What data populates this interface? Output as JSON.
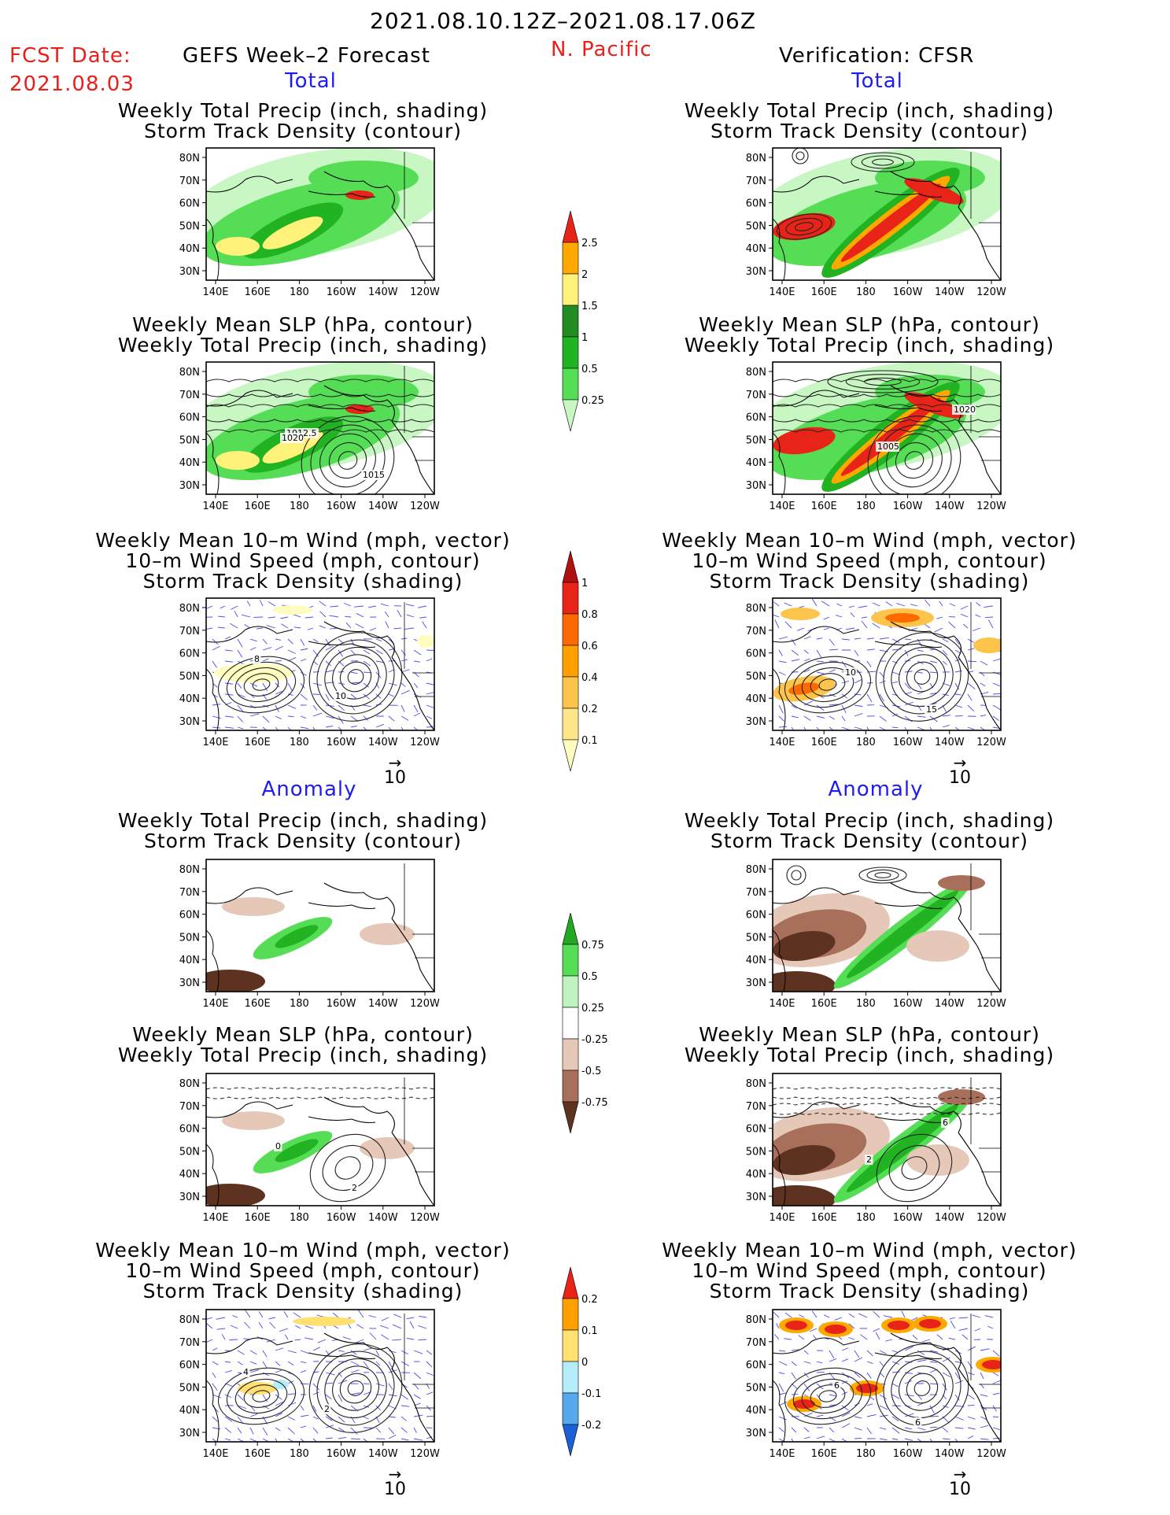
{
  "header": {
    "date_range": "2021.08.10.12Z–2021.08.17.06Z",
    "fcst_label": "FCST Date:",
    "fcst_date": "2021.08.03",
    "left_title": "GEFS Week–2 Forecast",
    "region": "N. Pacific",
    "right_title": "Verification: CFSR"
  },
  "sections": {
    "total": "Total",
    "anomaly": "Anomaly"
  },
  "panel_titles": {
    "precip_track": [
      "Weekly Total Precip (inch, shading)",
      "Storm Track Density (contour)"
    ],
    "slp_precip": [
      "Weekly Mean SLP (hPa, contour)",
      "Weekly Total Precip (inch, shading)"
    ],
    "wind": [
      "Weekly Mean 10–m Wind (mph, vector)",
      "10–m Wind Speed (mph, contour)",
      "Storm Track Density (shading)"
    ]
  },
  "map_axes": {
    "lat_labels": [
      "80N",
      "70N",
      "60N",
      "50N",
      "40N",
      "30N"
    ],
    "lon_labels": [
      "140E",
      "160E",
      "180",
      "160W",
      "140W",
      "120W"
    ]
  },
  "vector_reference": "10",
  "colorbars": [
    {
      "name": "total-precip",
      "labels": [
        "0.25",
        "0.5",
        "1",
        "1.5",
        "2",
        "2.5"
      ],
      "colors": [
        "#c8f7c4",
        "#55dd55",
        "#22b322",
        "#228b22",
        "#fff27a",
        "#ffa800",
        "#e82418"
      ]
    },
    {
      "name": "total-track",
      "labels": [
        "0.1",
        "0.2",
        "0.4",
        "0.6",
        "0.8",
        "1"
      ],
      "colors": [
        "#fffcc0",
        "#ffe68a",
        "#fcc44a",
        "#ffa000",
        "#ff6a00",
        "#e82418",
        "#b01010"
      ]
    },
    {
      "name": "anom-precip",
      "labels": [
        "0.75",
        "0.5",
        "0.25",
        "-0.25",
        "-0.5",
        "-0.75"
      ],
      "colors": [
        "#22a822",
        "#55dd55",
        "#c0f2c0",
        "#ffffff",
        "#e6c8b8",
        "#a8705a",
        "#5e3220"
      ]
    },
    {
      "name": "anom-track",
      "labels": [
        "0.2",
        "0.1",
        "0",
        "-0.1",
        "-0.2"
      ],
      "colors": [
        "#e82418",
        "#ffa000",
        "#ffe070",
        "#b4ecfa",
        "#58a8ee",
        "#1a60d8"
      ]
    }
  ],
  "panels": [
    {
      "id": "fc-total-precip-track",
      "labels": []
    },
    {
      "id": "obs-total-precip-track",
      "labels": []
    },
    {
      "id": "fc-total-slp-precip",
      "labels": [
        "1012.5",
        "1015",
        "1020"
      ]
    },
    {
      "id": "obs-total-slp-precip",
      "labels": [
        "1005",
        "1020"
      ]
    },
    {
      "id": "fc-total-wind",
      "labels": [
        "10",
        "8"
      ]
    },
    {
      "id": "obs-total-wind",
      "labels": [
        "15",
        "10"
      ]
    },
    {
      "id": "fc-anom-precip-track",
      "labels": []
    },
    {
      "id": "obs-anom-precip-track",
      "labels": []
    },
    {
      "id": "fc-anom-slp-precip",
      "labels": [
        "0",
        "2"
      ]
    },
    {
      "id": "obs-anom-slp-precip",
      "labels": [
        "2",
        "6"
      ]
    },
    {
      "id": "fc-anom-wind",
      "labels": [
        "2",
        "4"
      ]
    },
    {
      "id": "obs-anom-wind",
      "labels": [
        "6",
        "6"
      ]
    }
  ],
  "chart_data": {
    "type": "heatmap",
    "description_fields": {
      "region": "N. Pacific",
      "lat_range": [
        "25N",
        "85N"
      ],
      "lon_range": [
        "140E",
        "110W"
      ]
    },
    "panels": [
      {
        "column": "GEFS Week–2 Forecast",
        "section": "Total",
        "fields": [
          "Weekly Total Precip (inch, shading)",
          "Storm Track Density (contour)"
        ]
      },
      {
        "column": "Verification: CFSR",
        "section": "Total",
        "fields": [
          "Weekly Total Precip (inch, shading)",
          "Storm Track Density (contour)"
        ]
      },
      {
        "column": "GEFS Week–2 Forecast",
        "section": "Total",
        "fields": [
          "Weekly Mean SLP (hPa, contour)",
          "Weekly Total Precip (inch, shading)"
        ],
        "contour_labels": [
          "1012.5",
          "1015",
          "1020"
        ]
      },
      {
        "column": "Verification: CFSR",
        "section": "Total",
        "fields": [
          "Weekly Mean SLP (hPa, contour)",
          "Weekly Total Precip (inch, shading)"
        ],
        "contour_labels": [
          "1005",
          "1020"
        ]
      },
      {
        "column": "GEFS Week–2 Forecast",
        "section": "Total",
        "fields": [
          "Weekly Mean 10–m Wind (mph, vector)",
          "10–m Wind Speed (mph, contour)",
          "Storm Track Density (shading)"
        ]
      },
      {
        "column": "Verification: CFSR",
        "section": "Total",
        "fields": [
          "Weekly Mean 10–m Wind (mph, vector)",
          "10–m Wind Speed (mph, contour)",
          "Storm Track Density (shading)"
        ]
      },
      {
        "column": "GEFS Week–2 Forecast",
        "section": "Anomaly",
        "fields": [
          "Weekly Total Precip (inch, shading)",
          "Storm Track Density (contour)"
        ]
      },
      {
        "column": "Verification: CFSR",
        "section": "Anomaly",
        "fields": [
          "Weekly Total Precip (inch, shading)",
          "Storm Track Density (contour)"
        ]
      },
      {
        "column": "GEFS Week–2 Forecast",
        "section": "Anomaly",
        "fields": [
          "Weekly Mean SLP (hPa, contour)",
          "Weekly Total Precip (inch, shading)"
        ]
      },
      {
        "column": "Verification: CFSR",
        "section": "Anomaly",
        "fields": [
          "Weekly Mean SLP (hPa, contour)",
          "Weekly Total Precip (inch, shading)"
        ]
      },
      {
        "column": "GEFS Week–2 Forecast",
        "section": "Anomaly",
        "fields": [
          "Weekly Mean 10–m Wind (mph, vector)",
          "10–m Wind Speed (mph, contour)",
          "Storm Track Density (shading)"
        ]
      },
      {
        "column": "Verification: CFSR",
        "section": "Anomaly",
        "fields": [
          "Weekly Mean 10–m Wind (mph, vector)",
          "10–m Wind Speed (mph, contour)",
          "Storm Track Density (shading)"
        ]
      }
    ]
  }
}
